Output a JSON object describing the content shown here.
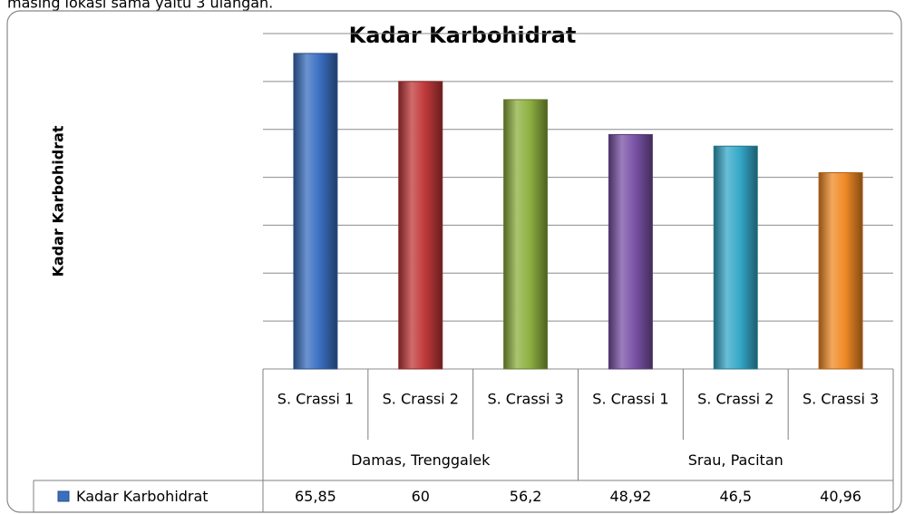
{
  "page_text": "masing lokasi sama yaitu 3 ulangan.",
  "chart_data": {
    "type": "bar",
    "title": "Kadar Karbohidrat",
    "ylabel": "Kadar Karbohidrat",
    "categories": [
      "S. Crassi 1",
      "S. Crassi 2",
      "S. Crassi 3",
      "S. Crassi 1",
      "S. Crassi 2",
      "S. Crassi 3"
    ],
    "groups": [
      "Damas, Trenggalek",
      "Srau, Pacitan"
    ],
    "series": [
      {
        "name": "Kadar Karbohidrat",
        "color": "#3a6fc0",
        "colors": [
          "#3a6fc0",
          "#c0393a",
          "#8db040",
          "#7a52a6",
          "#35a8c8",
          "#f08a26"
        ],
        "values": [
          65.85,
          60,
          56.2,
          48.92,
          46.5,
          40.96
        ],
        "value_labels": [
          "65,85",
          "60",
          "56,2",
          "48,92",
          "46,5",
          "40,96"
        ]
      }
    ],
    "ylim": [
      0,
      70
    ],
    "yticks": [
      0,
      10,
      20,
      30,
      40,
      50,
      60,
      70
    ],
    "grid": true
  }
}
